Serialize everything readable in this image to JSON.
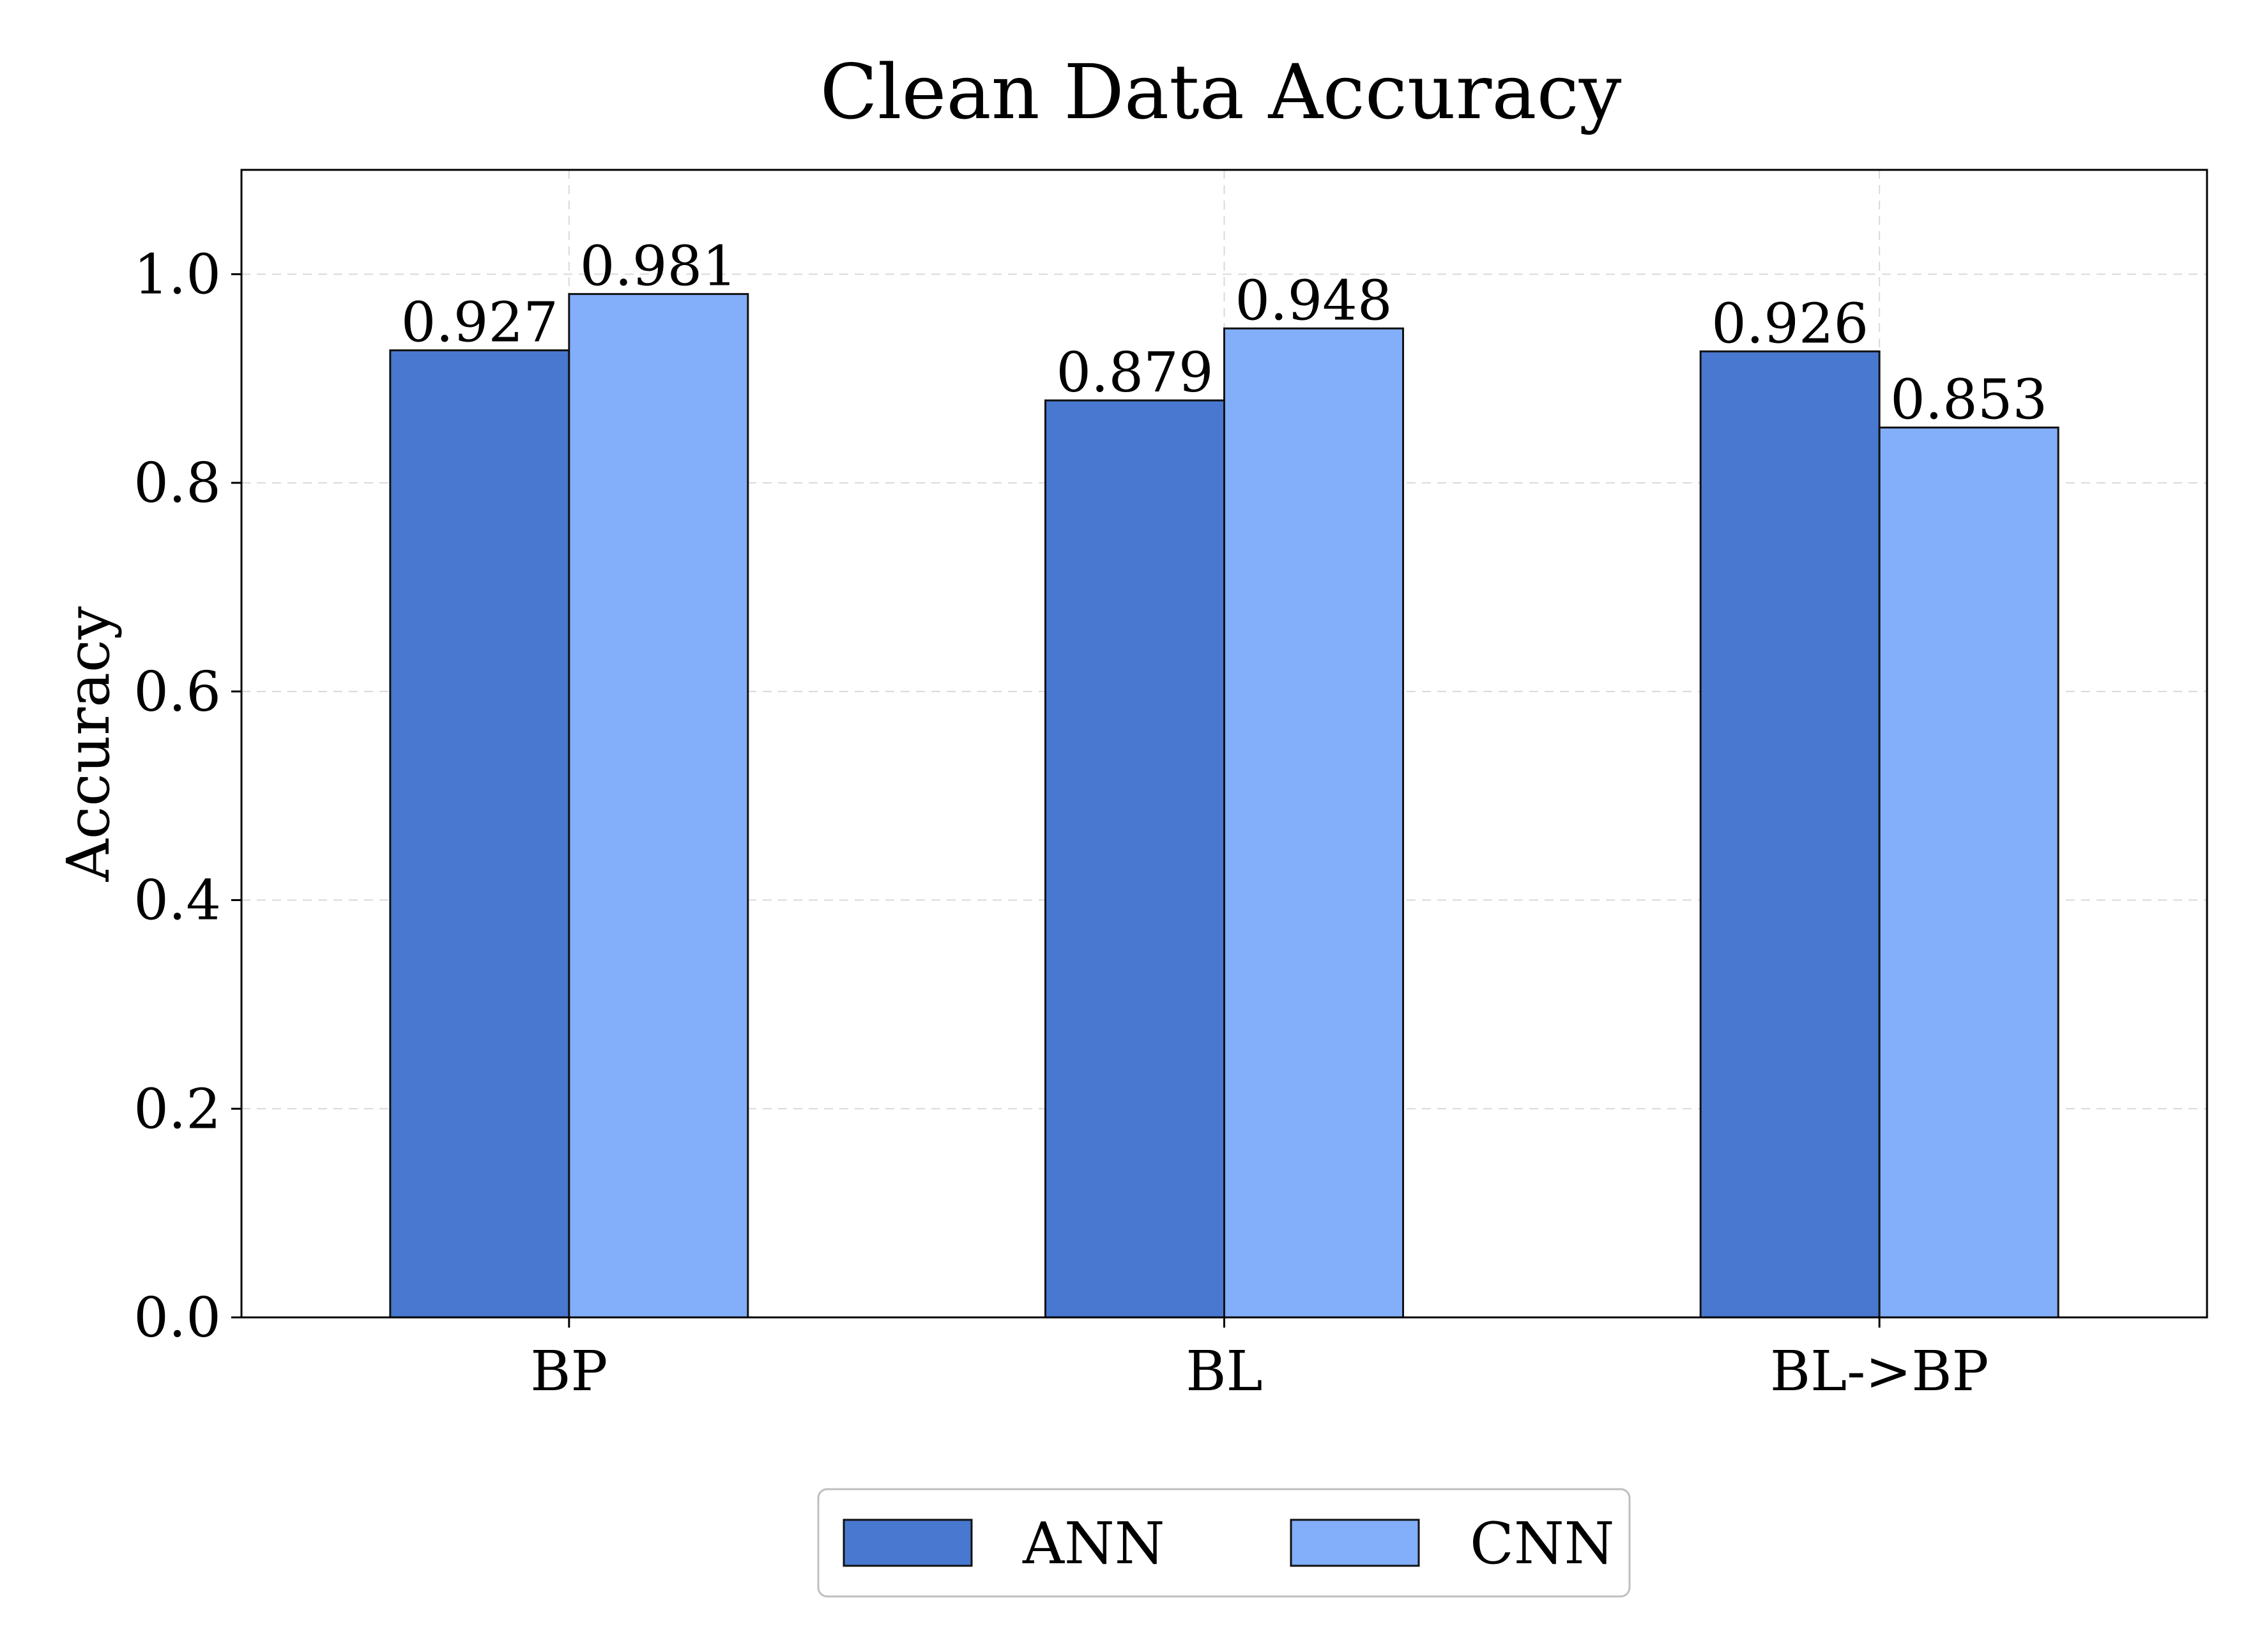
{
  "chart_data": {
    "type": "bar",
    "title": "Clean Data Accuracy",
    "xlabel": "",
    "ylabel": "Accuracy",
    "categories": [
      "BP",
      "BL",
      "BL->BP"
    ],
    "series": [
      {
        "name": "ANN",
        "values": [
          0.927,
          0.879,
          0.926
        ],
        "labels": [
          "0.927",
          "0.879",
          "0.926"
        ],
        "color": "#4878cf"
      },
      {
        "name": "CNN",
        "values": [
          0.981,
          0.948,
          0.853
        ],
        "labels": [
          "0.981",
          "0.948",
          "0.853"
        ],
        "color": "#82aefa"
      }
    ],
    "ylim": [
      0,
      1.1
    ],
    "yticks": [
      0.0,
      0.2,
      0.4,
      0.6,
      0.8,
      1.0
    ],
    "ytick_labels": [
      "0.0",
      "0.2",
      "0.4",
      "0.6",
      "0.8",
      "1.0"
    ],
    "grid": true,
    "legend": "bottom-center"
  }
}
